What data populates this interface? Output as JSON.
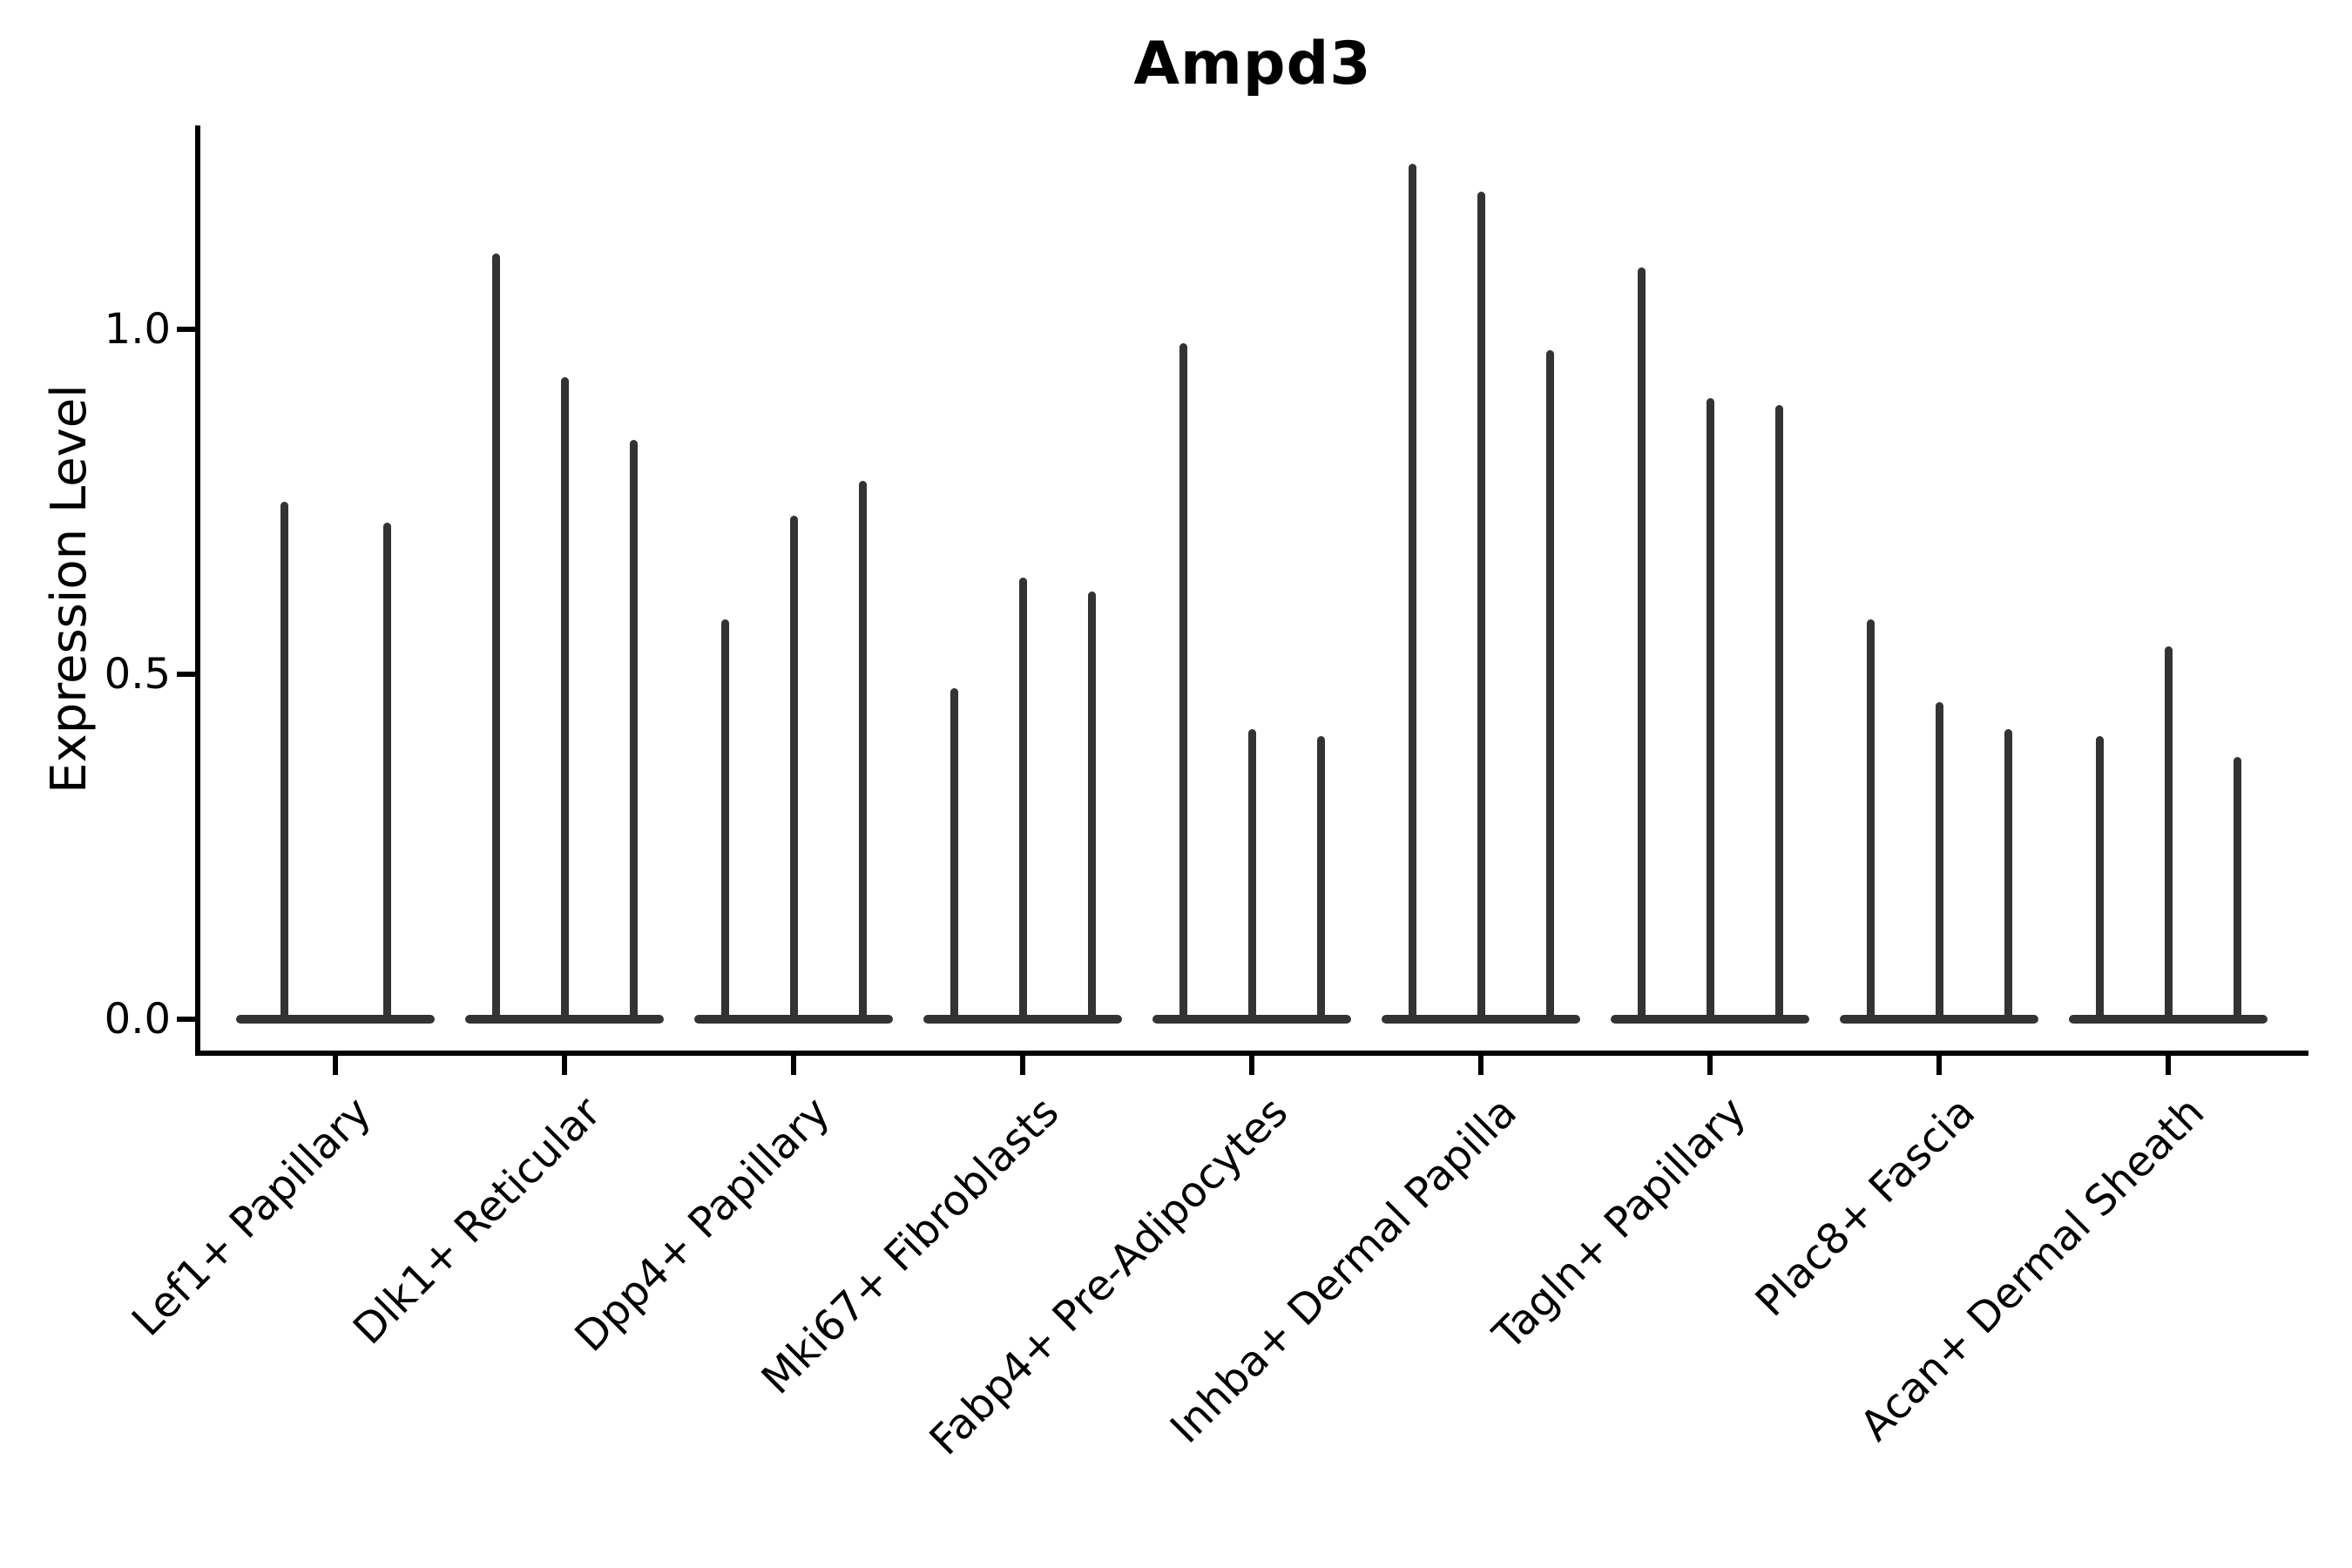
{
  "title": "Ampd3",
  "y_axis": {
    "label": "Expression Level",
    "tick_labels": [
      "0.0",
      "0.5",
      "1.0"
    ]
  },
  "chart_data": {
    "type": "violin",
    "title": "Ampd3",
    "xlabel": "",
    "ylabel": "Expression Level",
    "ylim": [
      -0.05,
      1.3
    ],
    "grid": false,
    "legend": "none",
    "ytick_values": [
      0.0,
      0.5,
      1.0
    ],
    "ytick_labels": [
      "0.0",
      "0.5",
      "1.0"
    ],
    "categories": [
      "Lef1+ Papillary",
      "Dlk1+ Reticular",
      "Dpp4+ Papillary",
      "Mki67+ Fibroblasts",
      "Fabp4+ Pre-Adipocytes",
      "Inhba+ Dermal Papilla",
      "Tagln+ Papillary",
      "Plac8+ Fascia",
      "Acan+ Dermal Sheath"
    ],
    "series": [
      {
        "category": "Lef1+ Papillary",
        "violin_max_values": [
          0.75,
          0.72
        ]
      },
      {
        "category": "Dlk1+ Reticular",
        "violin_max_values": [
          1.11,
          0.93,
          0.84
        ]
      },
      {
        "category": "Dpp4+ Papillary",
        "violin_max_values": [
          0.58,
          0.73,
          0.78
        ]
      },
      {
        "category": "Mki67+ Fibroblasts",
        "violin_max_values": [
          0.48,
          0.64,
          0.62
        ]
      },
      {
        "category": "Fabp4+ Pre-Adipocytes",
        "violin_max_values": [
          0.98,
          0.42,
          0.41
        ]
      },
      {
        "category": "Inhba+ Dermal Papilla",
        "violin_max_values": [
          1.24,
          1.2,
          0.97
        ]
      },
      {
        "category": "Tagln+ Papillary",
        "violin_max_values": [
          1.09,
          0.9,
          0.89
        ]
      },
      {
        "category": "Plac8+ Fascia",
        "violin_max_values": [
          0.58,
          0.46,
          0.42
        ]
      },
      {
        "category": "Acan+ Dermal Sheath",
        "violin_max_values": [
          0.41,
          0.54,
          0.38
        ]
      }
    ]
  },
  "style": {
    "violin_color": "#333333",
    "axis_color": "#000000",
    "text_color": "#000000",
    "background": "#ffffff"
  }
}
